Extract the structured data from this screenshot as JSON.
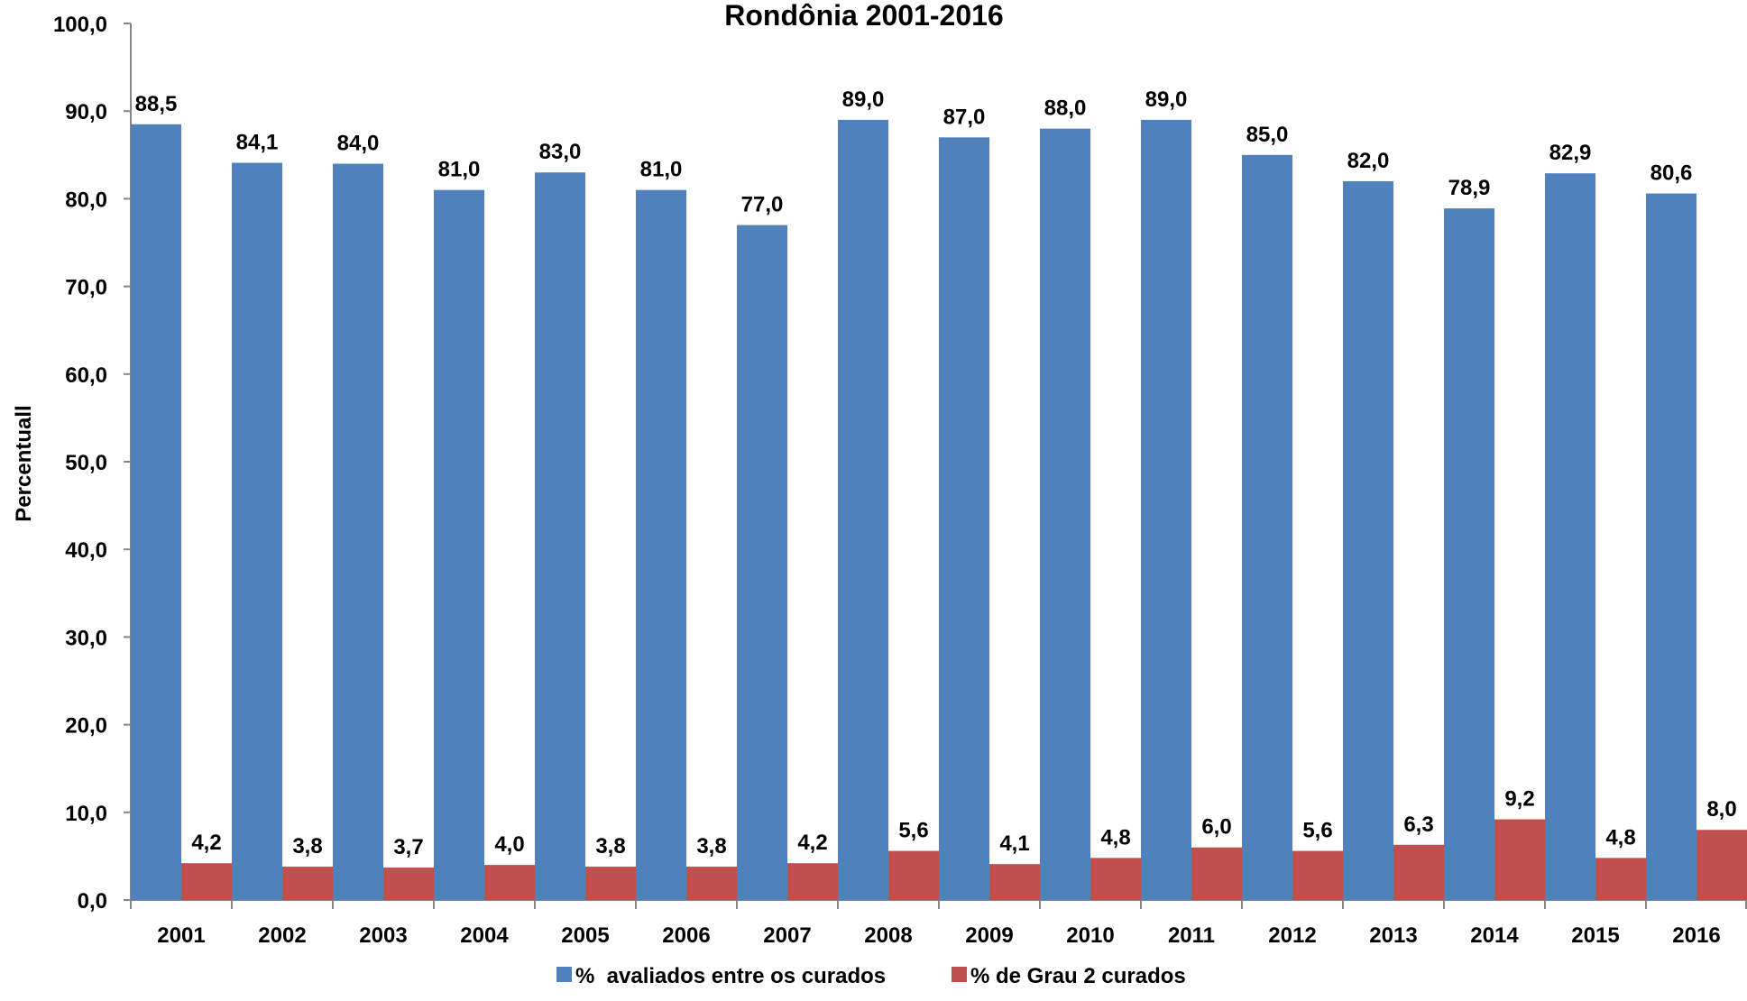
{
  "chart_data": {
    "type": "bar",
    "title": "Rondônia 2001-2016",
    "xlabel": "",
    "ylabel": "Percentuall",
    "ylim": [
      0,
      100
    ],
    "yticks": [
      "0,0",
      "10,0",
      "20,0",
      "30,0",
      "40,0",
      "50,0",
      "60,0",
      "70,0",
      "80,0",
      "90,0",
      "100,0"
    ],
    "categories": [
      "2001",
      "2002",
      "2003",
      "2004",
      "2005",
      "2006",
      "2007",
      "2008",
      "2009",
      "2010",
      "2011",
      "2012",
      "2013",
      "2014",
      "2015",
      "2016"
    ],
    "series": [
      {
        "name": "%  avaliados entre os curados",
        "color": "#4F81BD",
        "values": [
          88.5,
          84.1,
          84.0,
          81.0,
          83.0,
          81.0,
          77.0,
          89.0,
          87.0,
          88.0,
          89.0,
          85.0,
          82.0,
          78.9,
          82.9,
          80.6
        ],
        "labels": [
          "88,5",
          "84,1",
          "84,0",
          "81,0",
          "83,0",
          "81,0",
          "77,0",
          "89,0",
          "87,0",
          "88,0",
          "89,0",
          "85,0",
          "82,0",
          "78,9",
          "82,9",
          "80,6"
        ]
      },
      {
        "name": "% de Grau 2 curados",
        "color": "#C0504D",
        "values": [
          4.2,
          3.8,
          3.7,
          4.0,
          3.8,
          3.8,
          4.2,
          5.6,
          4.1,
          4.8,
          6.0,
          5.6,
          6.3,
          9.2,
          4.8,
          8.0
        ],
        "labels": [
          "4,2",
          "3,8",
          "3,7",
          "4,0",
          "3,8",
          "3,8",
          "4,2",
          "5,6",
          "4,1",
          "4,8",
          "6,0",
          "5,6",
          "6,3",
          "9,2",
          "4,8",
          "8,0"
        ]
      }
    ],
    "grid": false,
    "legend": "bottom-center"
  }
}
